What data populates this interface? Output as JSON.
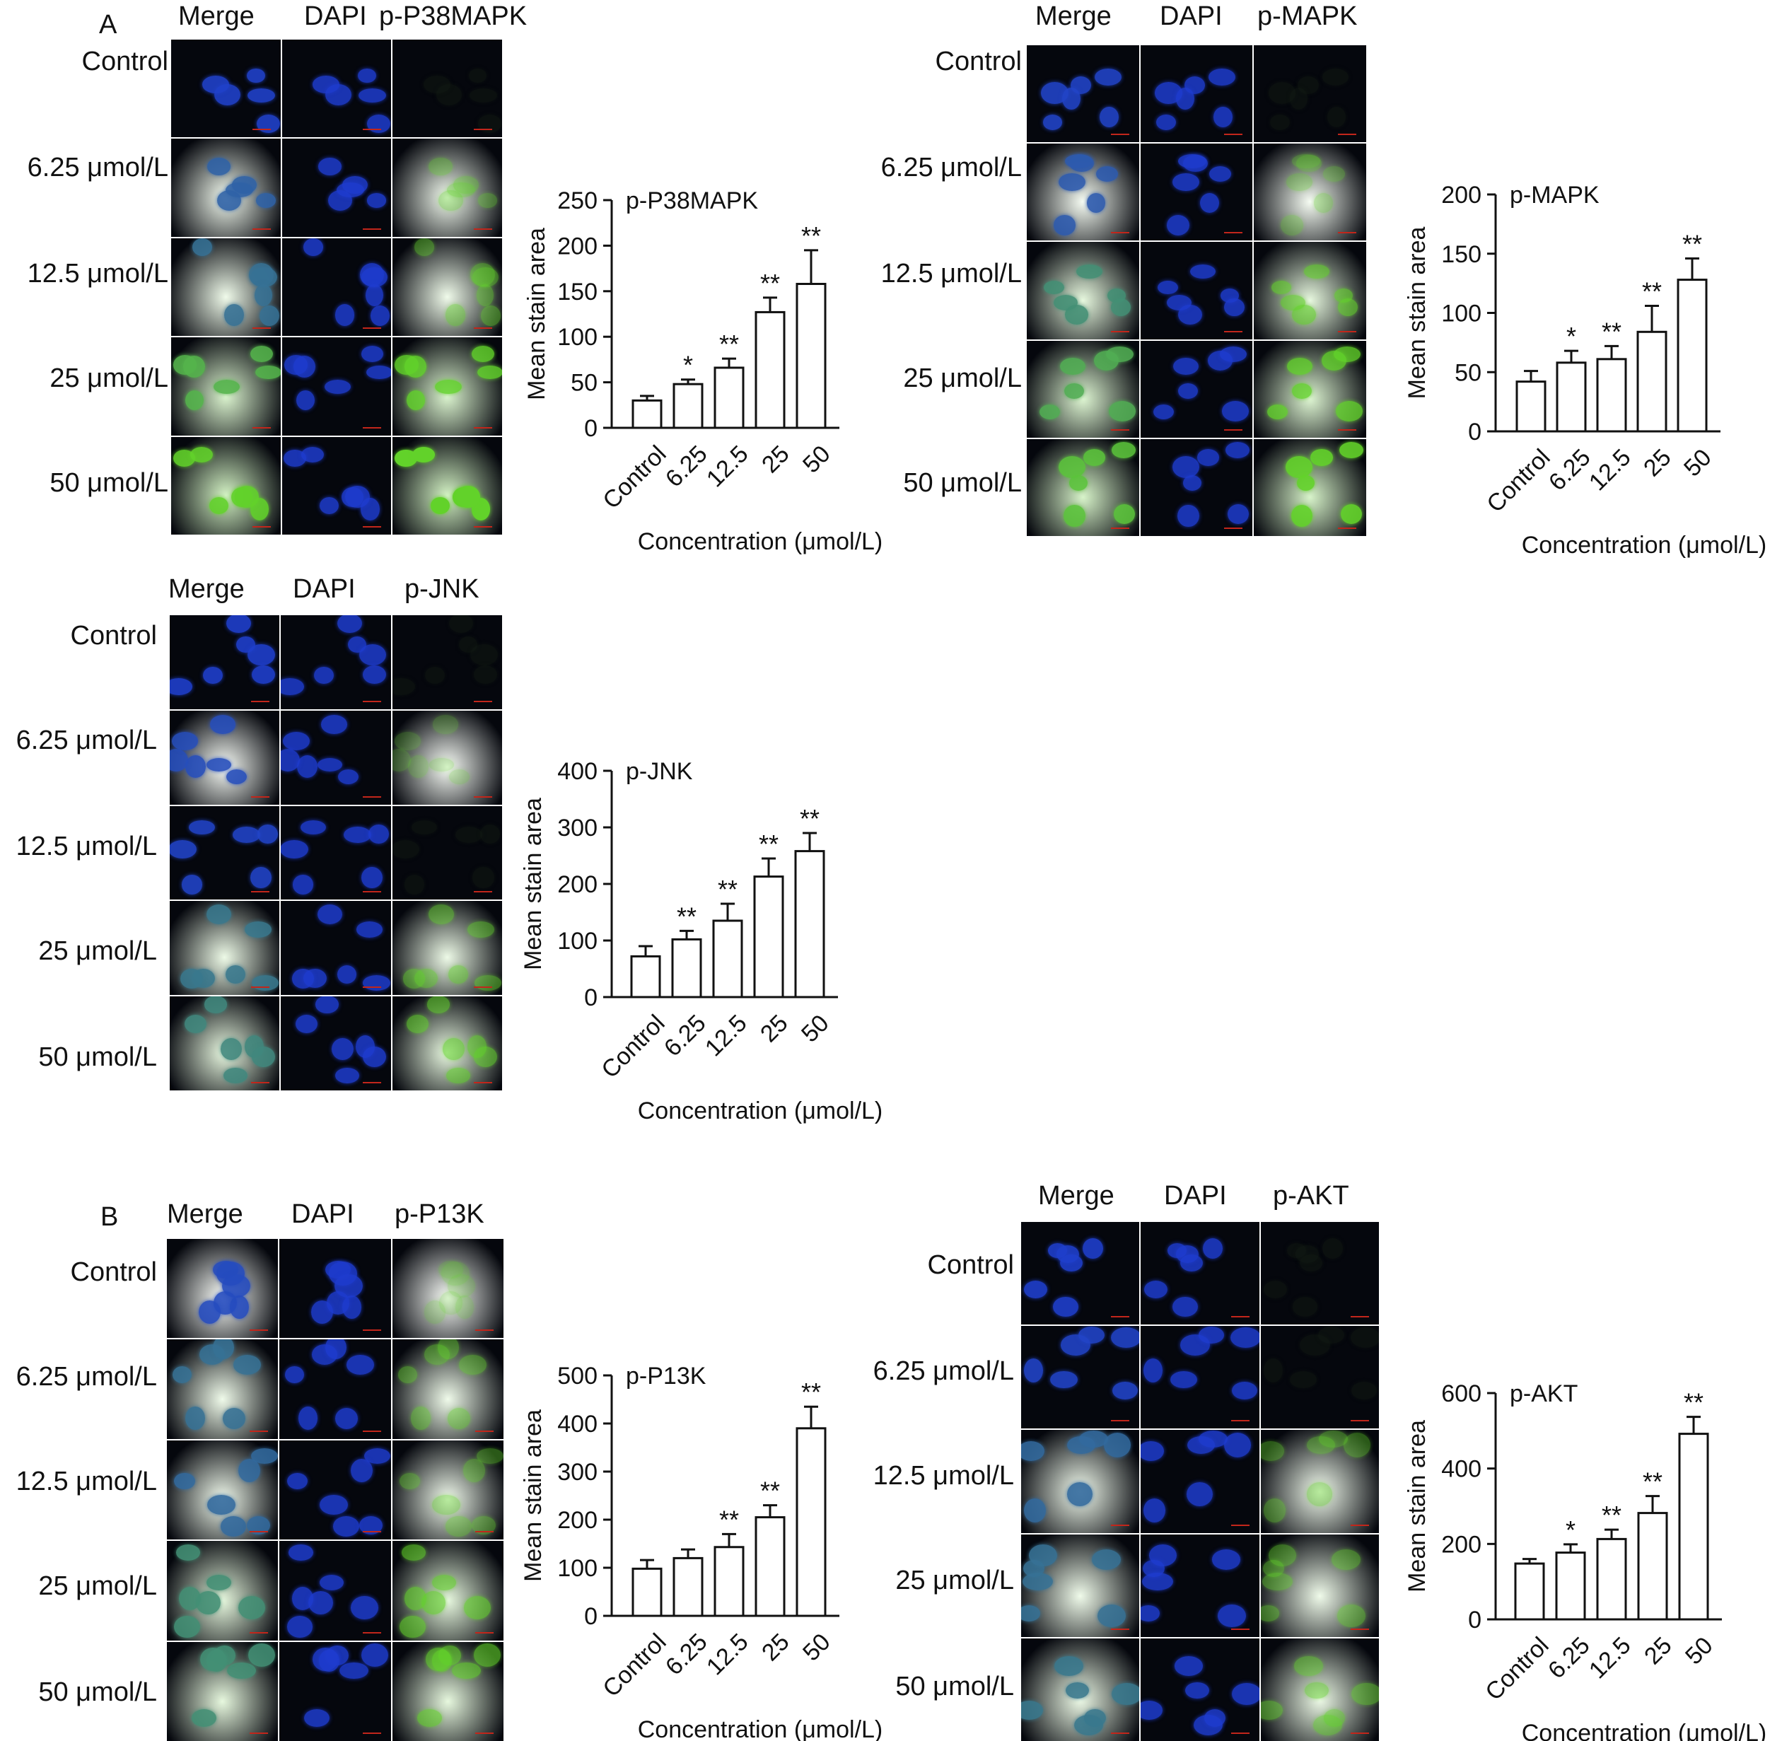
{
  "panel_letters": [
    "A",
    "B"
  ],
  "column_headers": {
    "merge": "Merge",
    "dapi": "DAPI"
  },
  "row_labels": [
    "Control",
    "6.25 μmol/L",
    "12.5 μmol/L",
    "25 μmol/L",
    "50 μmol/L"
  ],
  "colors": {
    "dapi": "#1e3ccf",
    "marker": "#62d22a",
    "scalebar": "#c2261b",
    "tile_bg": "#05070d"
  },
  "micrographs": [
    {
      "marker": "p-P38MAPK",
      "green_levels": [
        0.03,
        0.25,
        0.35,
        0.8,
        1.0
      ]
    },
    {
      "marker": "p-MAPK",
      "green_levels": [
        0.05,
        0.2,
        0.55,
        0.75,
        0.9
      ]
    },
    {
      "marker": "p-JNK",
      "green_levels": [
        0.02,
        0.12,
        0.05,
        0.4,
        0.5
      ]
    },
    {
      "marker": "p-P13K",
      "green_levels": [
        0.1,
        0.35,
        0.3,
        0.55,
        0.55
      ]
    },
    {
      "marker": "p-AKT",
      "green_levels": [
        0.02,
        0.05,
        0.3,
        0.35,
        0.4
      ]
    }
  ],
  "chart_data": [
    {
      "type": "bar",
      "title": "p-P38MAPK",
      "xlabel": "Concentration (μmol/L)",
      "ylabel": "Mean stain area",
      "categories": [
        "Control",
        "6.25",
        "12.5",
        "25",
        "50"
      ],
      "values": [
        30,
        48,
        66,
        127,
        158
      ],
      "errors": [
        5,
        5,
        10,
        16,
        37
      ],
      "significance": [
        "",
        "*",
        "**",
        "**",
        "**"
      ],
      "ylim": [
        0,
        250
      ],
      "yticks": [
        0,
        50,
        100,
        150,
        200,
        250
      ]
    },
    {
      "type": "bar",
      "title": "p-MAPK",
      "xlabel": "Concentration (μmol/L)",
      "ylabel": "Mean stain area",
      "categories": [
        "Control",
        "6.25",
        "12.5",
        "25",
        "50"
      ],
      "values": [
        42,
        58,
        61,
        84,
        128
      ],
      "errors": [
        9,
        10,
        11,
        22,
        18
      ],
      "significance": [
        "",
        "*",
        "**",
        "**",
        "**"
      ],
      "ylim": [
        0,
        200
      ],
      "yticks": [
        0,
        50,
        100,
        150,
        200
      ]
    },
    {
      "type": "bar",
      "title": "p-JNK",
      "xlabel": "Concentration (μmol/L)",
      "ylabel": "Mean stain area",
      "categories": [
        "Control",
        "6.25",
        "12.5",
        "25",
        "50"
      ],
      "values": [
        72,
        102,
        135,
        213,
        258
      ],
      "errors": [
        18,
        15,
        30,
        32,
        32
      ],
      "significance": [
        "",
        "**",
        "**",
        "**",
        "**"
      ],
      "ylim": [
        0,
        400
      ],
      "yticks": [
        0,
        100,
        200,
        300,
        400
      ]
    },
    {
      "type": "bar",
      "title": "p-P13K",
      "xlabel": "Concentration (μmol/L)",
      "ylabel": "Mean stain area",
      "categories": [
        "Control",
        "6.25",
        "12.5",
        "25",
        "50"
      ],
      "values": [
        98,
        120,
        143,
        205,
        390
      ],
      "errors": [
        18,
        18,
        27,
        25,
        45
      ],
      "significance": [
        "",
        "",
        "**",
        "**",
        "**"
      ],
      "ylim": [
        0,
        500
      ],
      "yticks": [
        0,
        100,
        200,
        300,
        400,
        500
      ]
    },
    {
      "type": "bar",
      "title": "p-AKT",
      "xlabel": "Concentration (μmol/L)",
      "ylabel": "Mean stain area",
      "categories": [
        "Control",
        "6.25",
        "12.5",
        "25",
        "50"
      ],
      "values": [
        148,
        177,
        213,
        282,
        492
      ],
      "errors": [
        12,
        22,
        25,
        45,
        45
      ],
      "significance": [
        "",
        "*",
        "**",
        "**",
        "**"
      ],
      "ylim": [
        0,
        600
      ],
      "yticks": [
        0,
        200,
        400,
        600
      ]
    }
  ]
}
